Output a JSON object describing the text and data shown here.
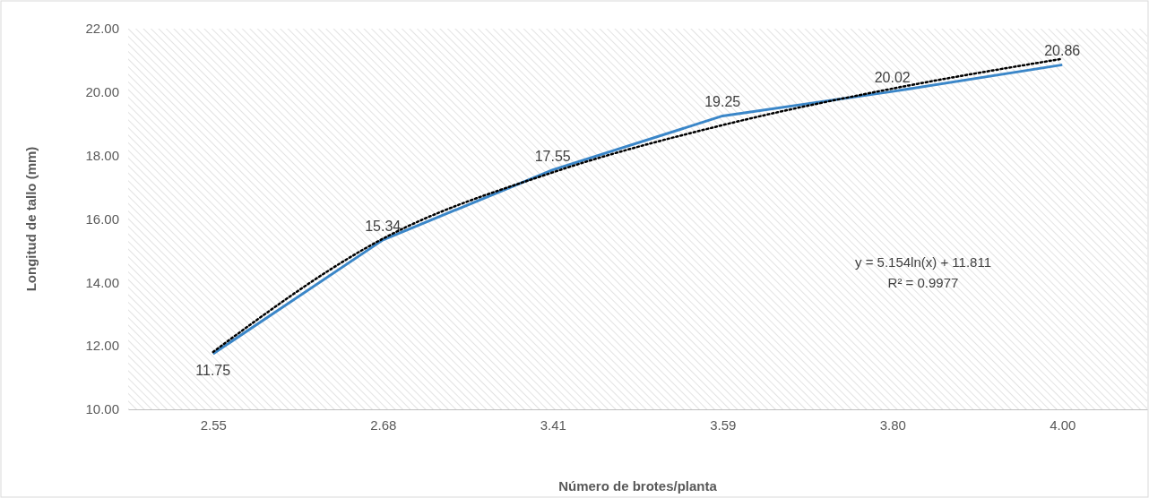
{
  "chart_data": {
    "type": "line",
    "xlabel": "Número de brotes/planta",
    "ylabel": "Longitud de tallo (mm)",
    "categories": [
      "2.55",
      "2.68",
      "3.41",
      "3.59",
      "3.80",
      "4.00"
    ],
    "series": [
      {
        "color": "#3a86c8",
        "values": [
          11.75,
          15.34,
          17.55,
          19.25,
          20.02,
          20.86
        ],
        "data_labels": true
      },
      {
        "type": "line",
        "color": "#000000",
        "line_style": "dotted",
        "x": [
          "2.55",
          "2.68",
          "3.41",
          "3.59",
          "3.80",
          "4.00"
        ],
        "values": [
          11.81,
          15.38,
          17.47,
          18.96,
          20.11,
          21.05
        ]
      }
    ],
    "ylim": [
      10,
      22
    ],
    "yticks": [
      {
        "value": 10,
        "label": "10.00"
      },
      {
        "value": 12,
        "label": "12.00"
      },
      {
        "value": 14,
        "label": "14.00"
      },
      {
        "value": 16,
        "label": "16.00"
      },
      {
        "value": 18,
        "label": "18.00"
      },
      {
        "value": 20,
        "label": "20.00"
      },
      {
        "value": 22,
        "label": "22.00"
      }
    ],
    "annotations": [
      "y = 5.154ln(x) + 11.811",
      "R² = 0.9977"
    ]
  }
}
